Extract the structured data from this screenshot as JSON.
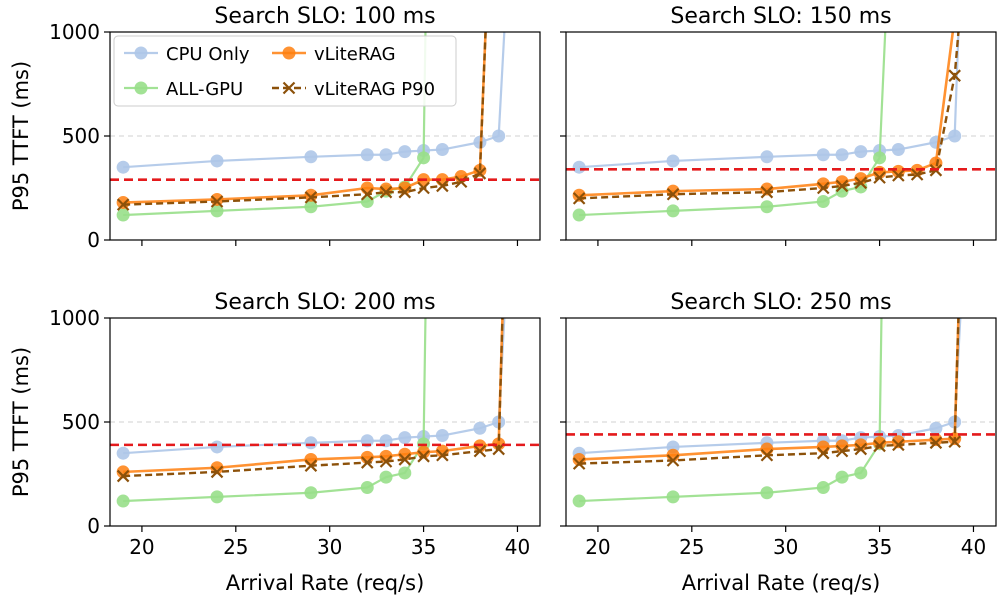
{
  "chart_data": {
    "type": "line",
    "xlabel": "Arrival Rate (req/s)",
    "ylabel": "P95 TTFT (ms)",
    "xlim": [
      18.3,
      41.2
    ],
    "ylim": [
      0,
      1000
    ],
    "xticks": [
      20,
      25,
      30,
      35,
      40
    ],
    "yticks": [
      0,
      500,
      1000
    ],
    "legend": {
      "placement": "top-left of first panel",
      "entries": [
        "CPU Only",
        "vLiteRAG",
        "ALL-GPU",
        "vLiteRAG P90"
      ]
    },
    "colors": {
      "cpu": "#aec7e8",
      "gpu": "#98df8a",
      "vlite": "#ff7f0e",
      "vlitep90": "#8c510a",
      "slo": "#e41a1c",
      "grid": "#d9d9d9"
    },
    "panels": [
      {
        "title": "Search SLO: 100 ms",
        "slo_line": 290,
        "series": [
          {
            "name": "CPU Only",
            "x": [
              19,
              24,
              29,
              32,
              33,
              34,
              35,
              36,
              38,
              39,
              39.3
            ],
            "y": [
              350,
              380,
              400,
              410,
              410,
              425,
              430,
              435,
              470,
              500,
              1000
            ]
          },
          {
            "name": "ALL-GPU",
            "x": [
              19,
              24,
              29,
              32,
              33,
              34,
              35,
              35.1
            ],
            "y": [
              120,
              140,
              160,
              185,
              235,
              255,
              395,
              1000
            ]
          },
          {
            "name": "vLiteRAG",
            "x": [
              19,
              24,
              29,
              32,
              33,
              34,
              35,
              36,
              37,
              38,
              38.3
            ],
            "y": [
              180,
              195,
              215,
              250,
              245,
              250,
              290,
              290,
              305,
              335,
              1000
            ]
          },
          {
            "name": "vLiteRAG P90",
            "x": [
              19,
              24,
              29,
              32,
              33,
              34,
              35,
              36,
              37,
              38,
              38.3
            ],
            "y": [
              170,
              185,
              205,
              220,
              230,
              230,
              250,
              260,
              280,
              320,
              1000
            ]
          }
        ]
      },
      {
        "title": "Search SLO: 150 ms",
        "slo_line": 340,
        "series": [
          {
            "name": "CPU Only",
            "x": [
              19,
              24,
              29,
              32,
              33,
              34,
              35,
              36,
              38,
              39,
              39.2
            ],
            "y": [
              350,
              380,
              400,
              410,
              410,
              425,
              430,
              435,
              470,
              500,
              1000
            ]
          },
          {
            "name": "ALL-GPU",
            "x": [
              19,
              24,
              29,
              32,
              33,
              34,
              35,
              35.3
            ],
            "y": [
              120,
              140,
              160,
              185,
              235,
              255,
              395,
              1000
            ]
          },
          {
            "name": "vLiteRAG",
            "x": [
              19,
              24,
              29,
              32,
              33,
              34,
              35,
              36,
              37,
              38,
              38.9
            ],
            "y": [
              215,
              235,
              245,
              270,
              280,
              295,
              325,
              330,
              335,
              370,
              1000
            ]
          },
          {
            "name": "vLiteRAG P90",
            "x": [
              19,
              24,
              29,
              32,
              33,
              34,
              35,
              36,
              37,
              38,
              39,
              39.2
            ],
            "y": [
              200,
              220,
              230,
              250,
              260,
              275,
              300,
              310,
              315,
              335,
              790,
              1000
            ]
          }
        ]
      },
      {
        "title": "Search SLO: 200 ms",
        "slo_line": 390,
        "series": [
          {
            "name": "CPU Only",
            "x": [
              19,
              24,
              29,
              32,
              33,
              34,
              35,
              36,
              38,
              39,
              39.3
            ],
            "y": [
              350,
              380,
              400,
              410,
              410,
              425,
              430,
              435,
              470,
              500,
              1000
            ]
          },
          {
            "name": "ALL-GPU",
            "x": [
              19,
              24,
              29,
              32,
              33,
              34,
              35,
              35.1
            ],
            "y": [
              120,
              140,
              160,
              185,
              235,
              255,
              395,
              1000
            ]
          },
          {
            "name": "vLiteRAG",
            "x": [
              19,
              24,
              29,
              32,
              33,
              34,
              35,
              36,
              38,
              39,
              39.2
            ],
            "y": [
              260,
              280,
              320,
              330,
              335,
              345,
              355,
              360,
              385,
              395,
              1000
            ]
          },
          {
            "name": "vLiteRAG P90",
            "x": [
              19,
              24,
              29,
              32,
              33,
              34,
              35,
              36,
              38,
              39,
              39.2
            ],
            "y": [
              240,
              260,
              290,
              305,
              310,
              320,
              335,
              340,
              360,
              370,
              1000
            ]
          }
        ]
      },
      {
        "title": "Search SLO: 250 ms",
        "slo_line": 440,
        "series": [
          {
            "name": "CPU Only",
            "x": [
              19,
              24,
              29,
              32,
              33,
              34,
              35,
              36,
              38,
              39,
              39.3
            ],
            "y": [
              350,
              380,
              400,
              410,
              410,
              425,
              430,
              435,
              470,
              500,
              1000
            ]
          },
          {
            "name": "ALL-GPU",
            "x": [
              19,
              24,
              29,
              32,
              33,
              34,
              35,
              35.1
            ],
            "y": [
              120,
              140,
              160,
              185,
              235,
              255,
              395,
              1000
            ]
          },
          {
            "name": "vLiteRAG",
            "x": [
              19,
              24,
              29,
              32,
              33,
              34,
              35,
              36,
              38,
              39,
              39.2
            ],
            "y": [
              320,
              340,
              370,
              380,
              385,
              390,
              400,
              405,
              415,
              420,
              1000
            ]
          },
          {
            "name": "vLiteRAG P90",
            "x": [
              19,
              24,
              29,
              32,
              33,
              34,
              35,
              36,
              38,
              39,
              39.2
            ],
            "y": [
              300,
              315,
              340,
              350,
              360,
              370,
              385,
              390,
              400,
              405,
              1000
            ]
          }
        ]
      }
    ]
  }
}
